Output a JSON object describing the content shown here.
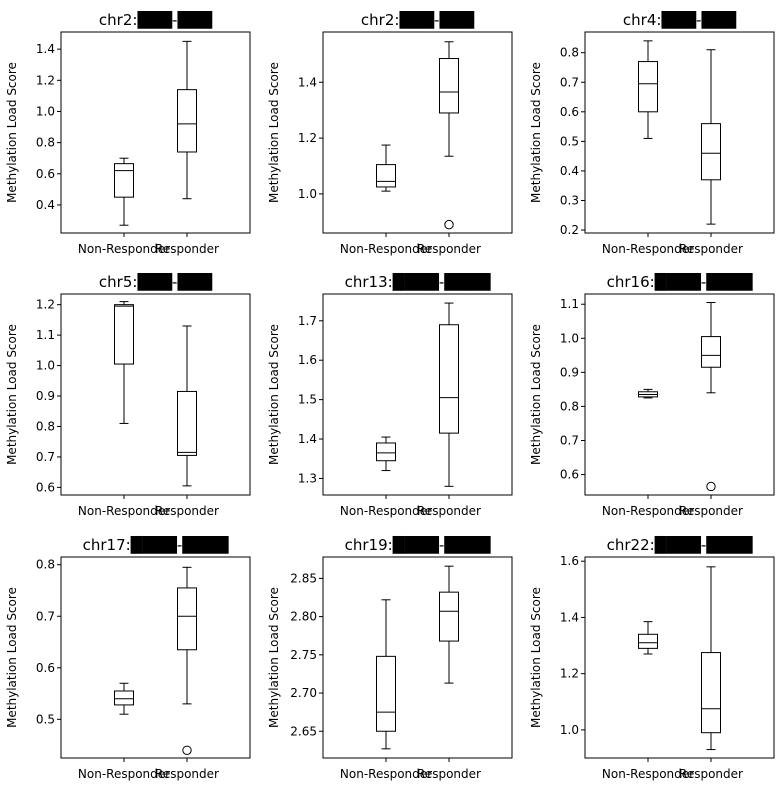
{
  "chart_data": [
    {
      "type": "box",
      "title_prefix": "chr2:",
      "redacted_blocks": [
        3,
        3
      ],
      "ylabel": "Methylation Load Score",
      "categories": [
        "Non-Responder",
        "Responder"
      ],
      "ylim": [
        0.22,
        1.51
      ],
      "yticks": [
        0.4,
        0.6,
        0.8,
        1.0,
        1.2,
        1.4
      ],
      "ytick_labels": [
        "0.4",
        "0.6",
        "0.8",
        "1.0",
        "1.2",
        "1.4"
      ],
      "boxes": [
        {
          "whislo": 0.27,
          "q1": 0.45,
          "med": 0.62,
          "q3": 0.665,
          "whishi": 0.7,
          "fliers": []
        },
        {
          "whislo": 0.44,
          "q1": 0.74,
          "med": 0.92,
          "q3": 1.14,
          "whishi": 1.45,
          "fliers": []
        }
      ]
    },
    {
      "type": "box",
      "title_prefix": "chr2:",
      "redacted_blocks": [
        3,
        3
      ],
      "ylabel": "Methylation Load Score",
      "categories": [
        "Non-Responder",
        "Responder"
      ],
      "ylim": [
        0.86,
        1.58
      ],
      "yticks": [
        1.0,
        1.2,
        1.4
      ],
      "ytick_labels": [
        "1.0",
        "1.2",
        "1.4"
      ],
      "boxes": [
        {
          "whislo": 1.01,
          "q1": 1.025,
          "med": 1.045,
          "q3": 1.105,
          "whishi": 1.175,
          "fliers": []
        },
        {
          "whislo": 1.135,
          "q1": 1.29,
          "med": 1.365,
          "q3": 1.485,
          "whishi": 1.545,
          "fliers": [
            0.89
          ]
        }
      ]
    },
    {
      "type": "box",
      "title_prefix": "chr4:",
      "redacted_blocks": [
        3,
        3
      ],
      "ylabel": "Methylation Load Score",
      "categories": [
        "Non-Responder",
        "Responder"
      ],
      "ylim": [
        0.19,
        0.87
      ],
      "yticks": [
        0.2,
        0.3,
        0.4,
        0.5,
        0.6,
        0.7,
        0.8
      ],
      "ytick_labels": [
        "0.2",
        "0.3",
        "0.4",
        "0.5",
        "0.6",
        "0.7",
        "0.8"
      ],
      "boxes": [
        {
          "whislo": 0.51,
          "q1": 0.6,
          "med": 0.695,
          "q3": 0.77,
          "whishi": 0.84,
          "fliers": []
        },
        {
          "whislo": 0.22,
          "q1": 0.37,
          "med": 0.46,
          "q3": 0.56,
          "whishi": 0.81,
          "fliers": []
        }
      ]
    },
    {
      "type": "box",
      "title_prefix": "chr5:",
      "redacted_blocks": [
        3,
        3
      ],
      "ylabel": "Methylation Load Score",
      "categories": [
        "Non-Responder",
        "Responder"
      ],
      "ylim": [
        0.575,
        1.235
      ],
      "yticks": [
        0.6,
        0.7,
        0.8,
        0.9,
        1.0,
        1.1,
        1.2
      ],
      "ytick_labels": [
        "0.6",
        "0.7",
        "0.8",
        "0.9",
        "1.0",
        "1.1",
        "1.2"
      ],
      "boxes": [
        {
          "whislo": 0.81,
          "q1": 1.005,
          "med": 1.195,
          "q3": 1.2,
          "whishi": 1.21,
          "fliers": []
        },
        {
          "whislo": 0.605,
          "q1": 0.705,
          "med": 0.715,
          "q3": 0.915,
          "whishi": 1.13,
          "fliers": []
        }
      ]
    },
    {
      "type": "box",
      "title_prefix": "chr13:",
      "redacted_blocks": [
        4,
        4
      ],
      "ylabel": "Methylation Load Score",
      "categories": [
        "Non-Responder",
        "Responder"
      ],
      "ylim": [
        1.258,
        1.768
      ],
      "yticks": [
        1.3,
        1.4,
        1.5,
        1.6,
        1.7
      ],
      "ytick_labels": [
        "1.3",
        "1.4",
        "1.5",
        "1.6",
        "1.7"
      ],
      "boxes": [
        {
          "whislo": 1.32,
          "q1": 1.345,
          "med": 1.365,
          "q3": 1.39,
          "whishi": 1.405,
          "fliers": []
        },
        {
          "whislo": 1.28,
          "q1": 1.415,
          "med": 1.505,
          "q3": 1.69,
          "whishi": 1.745,
          "fliers": []
        }
      ]
    },
    {
      "type": "box",
      "title_prefix": "chr16:",
      "redacted_blocks": [
        4,
        4
      ],
      "ylabel": "Methylation Load Score",
      "categories": [
        "Non-Responder",
        "Responder"
      ],
      "ylim": [
        0.54,
        1.13
      ],
      "yticks": [
        0.6,
        0.7,
        0.8,
        0.9,
        1.0,
        1.1
      ],
      "ytick_labels": [
        "0.6",
        "0.7",
        "0.8",
        "0.9",
        "1.0",
        "1.1"
      ],
      "boxes": [
        {
          "whislo": 0.825,
          "q1": 0.828,
          "med": 0.835,
          "q3": 0.843,
          "whishi": 0.85,
          "fliers": []
        },
        {
          "whislo": 0.84,
          "q1": 0.915,
          "med": 0.95,
          "q3": 1.005,
          "whishi": 1.105,
          "fliers": [
            0.565
          ]
        }
      ]
    },
    {
      "type": "box",
      "title_prefix": "chr17:",
      "redacted_blocks": [
        4,
        4
      ],
      "ylabel": "Methylation Load Score",
      "categories": [
        "Non-Responder",
        "Responder"
      ],
      "ylim": [
        0.425,
        0.815
      ],
      "yticks": [
        0.5,
        0.6,
        0.7,
        0.8
      ],
      "ytick_labels": [
        "0.5",
        "0.6",
        "0.7",
        "0.8"
      ],
      "boxes": [
        {
          "whislo": 0.51,
          "q1": 0.528,
          "med": 0.54,
          "q3": 0.555,
          "whishi": 0.57,
          "fliers": []
        },
        {
          "whislo": 0.53,
          "q1": 0.635,
          "med": 0.7,
          "q3": 0.755,
          "whishi": 0.795,
          "fliers": [
            0.44
          ]
        }
      ]
    },
    {
      "type": "box",
      "title_prefix": "chr19:",
      "redacted_blocks": [
        4,
        4
      ],
      "ylabel": "Methylation Load Score",
      "categories": [
        "Non-Responder",
        "Responder"
      ],
      "ylim": [
        2.615,
        2.878
      ],
      "yticks": [
        2.65,
        2.7,
        2.75,
        2.8,
        2.85
      ],
      "ytick_labels": [
        "2.65",
        "2.70",
        "2.75",
        "2.80",
        "2.85"
      ],
      "boxes": [
        {
          "whislo": 2.627,
          "q1": 2.65,
          "med": 2.675,
          "q3": 2.748,
          "whishi": 2.822,
          "fliers": []
        },
        {
          "whislo": 2.713,
          "q1": 2.768,
          "med": 2.807,
          "q3": 2.832,
          "whishi": 2.866,
          "fliers": []
        }
      ]
    },
    {
      "type": "box",
      "title_prefix": "chr22:",
      "redacted_blocks": [
        4,
        4
      ],
      "ylabel": "Methylation Load Score",
      "categories": [
        "Non-Responder",
        "Responder"
      ],
      "ylim": [
        0.9,
        1.615
      ],
      "yticks": [
        1.0,
        1.2,
        1.4,
        1.6
      ],
      "ytick_labels": [
        "1.0",
        "1.2",
        "1.4",
        "1.6"
      ],
      "boxes": [
        {
          "whislo": 1.27,
          "q1": 1.29,
          "med": 1.31,
          "q3": 1.34,
          "whishi": 1.385,
          "fliers": []
        },
        {
          "whislo": 0.93,
          "q1": 0.99,
          "med": 1.075,
          "q3": 1.275,
          "whishi": 1.58,
          "fliers": []
        }
      ]
    }
  ]
}
